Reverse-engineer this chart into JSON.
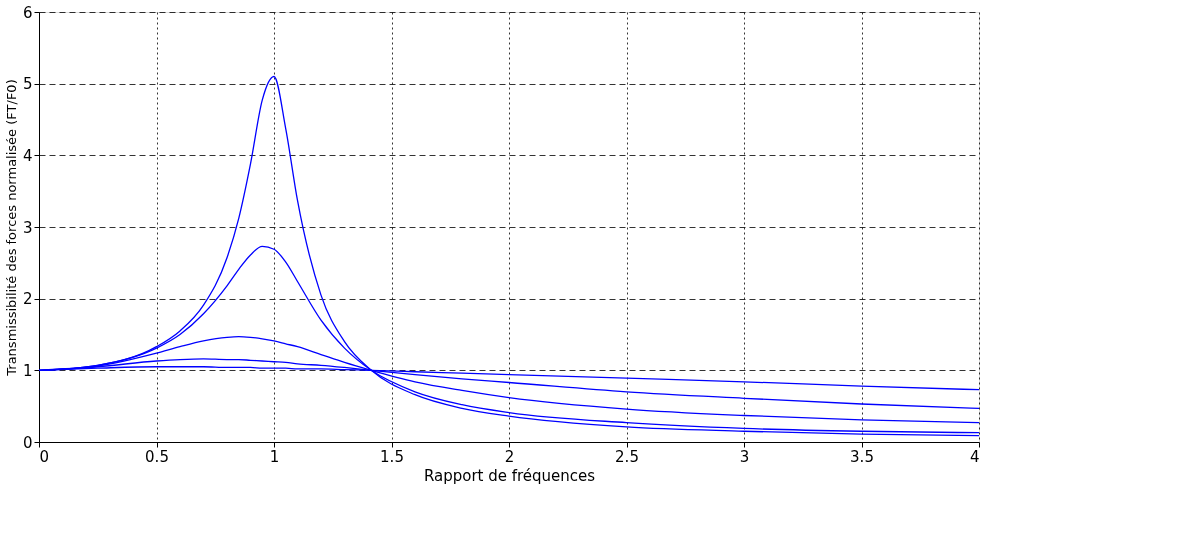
{
  "chart_data": {
    "type": "line",
    "xlabel": "Rapport de fréquences",
    "ylabel": "Transmissibilité des forces normalisée (FT/F0)",
    "x": [
      0,
      0.25,
      0.5,
      0.6,
      0.7,
      0.8,
      0.85,
      0.9,
      0.95,
      1,
      1.05,
      1.1,
      1.2,
      1.3,
      1.414,
      1.6,
      1.8,
      2,
      2.5,
      3,
      3.5,
      4
    ],
    "xlim": [
      0,
      4
    ],
    "xticks": [
      0,
      0.5,
      1,
      1.5,
      2,
      2.5,
      3,
      3.5,
      4
    ],
    "ylim": [
      0,
      6
    ],
    "yticks": [
      0,
      1,
      2,
      3,
      4,
      5,
      6
    ],
    "grid": true,
    "line_style": "solid",
    "marker": "none",
    "series": [
      {
        "color": "#0000ff",
        "values": [
          1,
          1.07,
          1.33,
          1.55,
          1.91,
          2.57,
          3.12,
          3.88,
          4.77,
          5.1,
          4.37,
          3.37,
          2.05,
          1.4,
          1,
          0.66,
          0.47,
          0.36,
          0.21,
          0.15,
          0.11,
          0.09
        ]
      },
      {
        "color": "#0000ff",
        "values": [
          1,
          1.07,
          1.31,
          1.5,
          1.79,
          2.18,
          2.41,
          2.61,
          2.73,
          2.69,
          2.51,
          2.24,
          1.7,
          1.31,
          1,
          0.7,
          0.52,
          0.41,
          0.27,
          0.19,
          0.15,
          0.13
        ]
      },
      {
        "color": "#0000ff",
        "values": [
          1,
          1.06,
          1.24,
          1.33,
          1.41,
          1.46,
          1.47,
          1.46,
          1.44,
          1.41,
          1.37,
          1.33,
          1.22,
          1.11,
          1,
          0.84,
          0.72,
          0.62,
          0.46,
          0.37,
          0.31,
          0.27
        ]
      },
      {
        "color": "#0000ff",
        "values": [
          1,
          1.05,
          1.13,
          1.15,
          1.16,
          1.15,
          1.15,
          1.14,
          1.13,
          1.12,
          1.11,
          1.09,
          1.07,
          1.04,
          1,
          0.94,
          0.88,
          0.83,
          0.7,
          0.61,
          0.53,
          0.47
        ]
      },
      {
        "color": "#0000ff",
        "values": [
          1,
          1.03,
          1.05,
          1.05,
          1.05,
          1.04,
          1.04,
          1.04,
          1.03,
          1.03,
          1.03,
          1.02,
          1.02,
          1.01,
          1,
          0.98,
          0.96,
          0.94,
          0.89,
          0.84,
          0.78,
          0.73
        ]
      }
    ]
  }
}
